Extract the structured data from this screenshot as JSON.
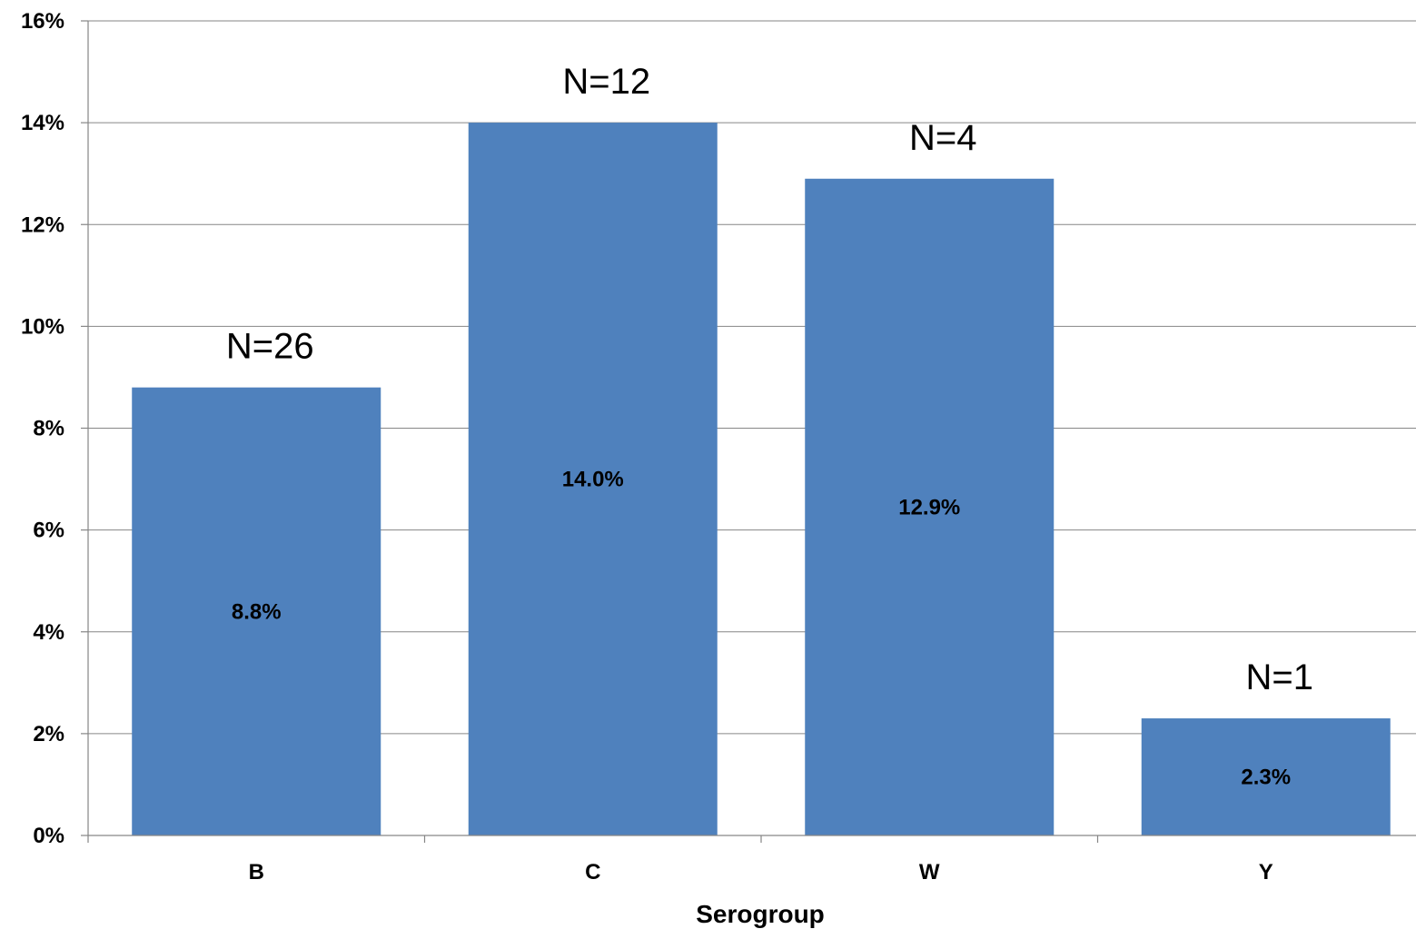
{
  "chart_data": {
    "type": "bar",
    "categories": [
      "B",
      "C",
      "W",
      "Y"
    ],
    "values": [
      8.8,
      14.0,
      12.9,
      2.3
    ],
    "value_labels": [
      "8.8%",
      "14.0%",
      "12.9%",
      "2.3%"
    ],
    "annotations": [
      "N=26",
      "N=12",
      "N=4",
      "N=1"
    ],
    "xlabel": "Serogroup",
    "ylabel": "",
    "title": "",
    "ylim": [
      0,
      16
    ],
    "yticks": [
      0,
      2,
      4,
      6,
      8,
      10,
      12,
      14,
      16
    ],
    "ytick_labels": [
      "0%",
      "2%",
      "4%",
      "6%",
      "8%",
      "10%",
      "12%",
      "14%",
      "16%"
    ],
    "grid": true,
    "legend": "none",
    "bar_color": "#4F81BD"
  }
}
